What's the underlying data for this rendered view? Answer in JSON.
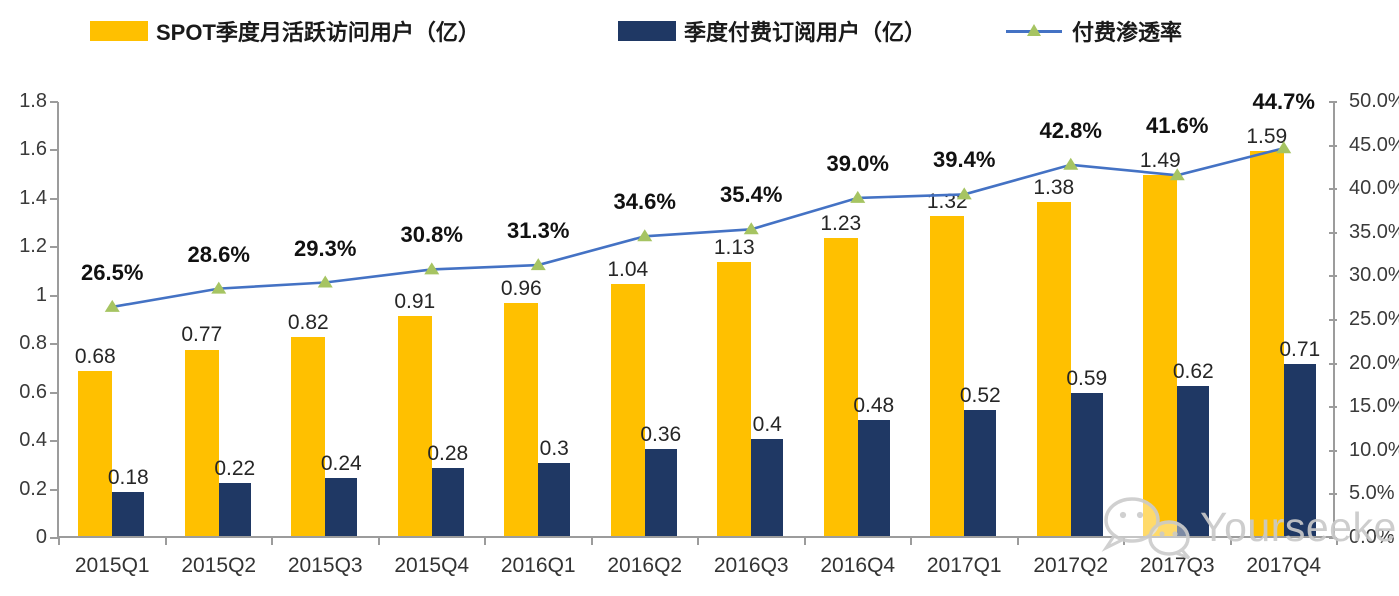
{
  "legend": {
    "items": [
      {
        "label": "SPOT季度月活跃访问用户（亿）",
        "swatch": "bar",
        "color": "#FFC000"
      },
      {
        "label": "季度付费订阅用户（亿）",
        "swatch": "bar",
        "color": "#1F3864"
      },
      {
        "label": "付费渗透率",
        "swatch": "line",
        "color": "#4472C4",
        "marker_color": "#A6C462"
      }
    ]
  },
  "chart_data": {
    "type": "bar",
    "subtype": "combo-bar-line",
    "categories": [
      "2015Q1",
      "2015Q2",
      "2015Q3",
      "2015Q4",
      "2016Q1",
      "2016Q2",
      "2016Q3",
      "2016Q4",
      "2017Q1",
      "2017Q2",
      "2017Q3",
      "2017Q4"
    ],
    "series": [
      {
        "name": "SPOT季度月活跃访问用户（亿）",
        "type": "bar",
        "axis": "left",
        "color": "#FFC000",
        "values": [
          0.68,
          0.77,
          0.82,
          0.91,
          0.96,
          1.04,
          1.13,
          1.23,
          1.32,
          1.38,
          1.49,
          1.59
        ]
      },
      {
        "name": "季度付费订阅用户（亿）",
        "type": "bar",
        "axis": "left",
        "color": "#1F3864",
        "values": [
          0.18,
          0.22,
          0.24,
          0.28,
          0.3,
          0.36,
          0.4,
          0.48,
          0.52,
          0.59,
          0.62,
          0.71
        ]
      },
      {
        "name": "付费渗透率",
        "type": "line",
        "axis": "right",
        "color": "#4472C4",
        "marker": "triangle",
        "marker_color": "#A6C462",
        "values": [
          26.5,
          28.6,
          29.3,
          30.8,
          31.3,
          34.6,
          35.4,
          39.0,
          39.4,
          42.8,
          41.6,
          44.7
        ],
        "labels": [
          "26.5%",
          "28.6%",
          "29.3%",
          "30.8%",
          "31.3%",
          "34.6%",
          "35.4%",
          "39.0%",
          "39.4%",
          "42.8%",
          "41.6%",
          "44.7%"
        ]
      }
    ],
    "left_axis": {
      "min": 0,
      "max": 1.8,
      "step": 0.2,
      "ticks": [
        "1.8",
        "1.6",
        "1.4",
        "1.2",
        "1",
        "0.8",
        "0.6",
        "0.4",
        "0.2",
        "0"
      ]
    },
    "right_axis": {
      "min": 0,
      "max": 50,
      "step": 5,
      "ticks": [
        "50.0%",
        "45.0%",
        "40.0%",
        "35.0%",
        "30.0%",
        "25.0%",
        "20.0%",
        "15.0%",
        "10.0%",
        "5.0%",
        "0.0%"
      ]
    },
    "grid": false,
    "legend_position": "top"
  },
  "watermark": {
    "text": "Yourseeker",
    "icon": "wechat-icon"
  }
}
